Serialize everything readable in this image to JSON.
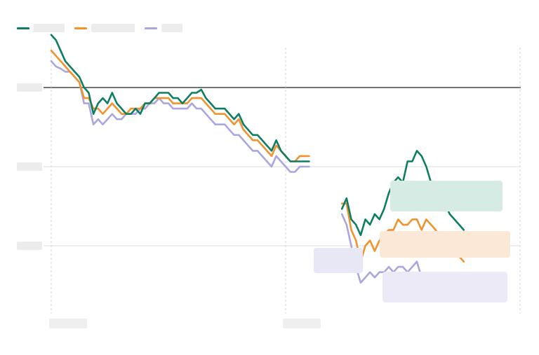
{
  "chart_data": {
    "type": "line",
    "title": "",
    "xlabel": "",
    "ylabel": "",
    "legend_position": "top-left",
    "x_tick_labels": [
      "",
      ""
    ],
    "y_tick_labels": [
      "",
      "",
      ""
    ],
    "ylim": [
      -20,
      5
    ],
    "reference_line": 0,
    "grid": true,
    "colors": [
      "#0e7e63",
      "#f0922e",
      "#a9a6e0"
    ],
    "series": [
      {
        "values": [
          [
            0,
            5.0
          ],
          [
            1,
            4.5
          ],
          [
            2,
            3.5
          ],
          [
            3,
            2.5
          ],
          [
            4,
            2.0
          ],
          [
            5,
            1.5
          ],
          [
            6,
            1.0
          ],
          [
            7,
            0.0
          ],
          [
            8,
            -0.5
          ],
          [
            9,
            -2.5
          ],
          [
            10,
            -1.5
          ],
          [
            11,
            -1.0
          ],
          [
            12,
            -1.5
          ],
          [
            13,
            -0.5
          ],
          [
            14,
            -1.5
          ],
          [
            15,
            -2.0
          ],
          [
            16,
            -2.5
          ],
          [
            17,
            -2.5
          ],
          [
            18,
            -2.0
          ],
          [
            19,
            -2.5
          ],
          [
            20,
            -1.5
          ],
          [
            21,
            -1.5
          ],
          [
            22,
            -1.0
          ],
          [
            23,
            -0.5
          ],
          [
            24,
            -0.5
          ],
          [
            25,
            -0.5
          ],
          [
            26,
            -1.0
          ],
          [
            27,
            -1.0
          ],
          [
            28,
            -1.5
          ],
          [
            29,
            -1.0
          ],
          [
            30,
            -0.5
          ],
          [
            31,
            -0.5
          ],
          [
            32,
            -0.2
          ],
          [
            33,
            -1.0
          ],
          [
            34,
            -1.5
          ],
          [
            35,
            -2.0
          ],
          [
            36,
            -2.0
          ],
          [
            37,
            -2.0
          ],
          [
            38,
            -2.5
          ],
          [
            39,
            -3.0
          ],
          [
            40,
            -2.5
          ],
          [
            41,
            -3.5
          ],
          [
            42,
            -4.0
          ],
          [
            43,
            -4.5
          ],
          [
            44,
            -4.5
          ],
          [
            45,
            -5.0
          ],
          [
            46,
            -5.5
          ],
          [
            47,
            -6.0
          ],
          [
            48,
            -5.0
          ],
          [
            49,
            -6.0
          ],
          [
            50,
            -6.5
          ],
          [
            51,
            -7.0
          ],
          [
            52,
            -7.0
          ],
          [
            53,
            -7.0
          ],
          [
            54,
            -7.0
          ],
          [
            55,
            -7.0
          ],
          [
            62,
            -11.5
          ],
          [
            63,
            -10.5
          ],
          [
            64,
            -12.5
          ],
          [
            65,
            -13.0
          ],
          [
            66,
            -14.0
          ],
          [
            67,
            -12.5
          ],
          [
            68,
            -13.0
          ],
          [
            69,
            -12.0
          ],
          [
            70,
            -12.5
          ],
          [
            71,
            -11.5
          ],
          [
            72,
            -10.0
          ],
          [
            73,
            -9.0
          ],
          [
            74,
            -8.5
          ],
          [
            75,
            -9.0
          ],
          [
            76,
            -7.0
          ],
          [
            77,
            -7.0
          ],
          [
            78,
            -6.0
          ],
          [
            79,
            -6.5
          ],
          [
            80,
            -7.5
          ],
          [
            81,
            -9.0
          ],
          [
            82,
            -9.5
          ],
          [
            83,
            -10.0
          ],
          [
            84,
            -11.0
          ],
          [
            85,
            -12.0
          ],
          [
            86,
            -12.5
          ],
          [
            87,
            -13.0
          ],
          [
            88,
            -13.5
          ]
        ]
      },
      {
        "values": [
          [
            0,
            3.5
          ],
          [
            1,
            3.0
          ],
          [
            2,
            2.5
          ],
          [
            3,
            2.0
          ],
          [
            4,
            1.5
          ],
          [
            5,
            1.0
          ],
          [
            6,
            0.5
          ],
          [
            7,
            -1.0
          ],
          [
            8,
            -1.0
          ],
          [
            9,
            -2.0
          ],
          [
            10,
            -2.0
          ],
          [
            11,
            -2.5
          ],
          [
            12,
            -2.0
          ],
          [
            13,
            -1.5
          ],
          [
            14,
            -2.0
          ],
          [
            15,
            -2.5
          ],
          [
            16,
            -2.5
          ],
          [
            17,
            -2.0
          ],
          [
            18,
            -2.0
          ],
          [
            19,
            -2.0
          ],
          [
            20,
            -1.5
          ],
          [
            21,
            -1.5
          ],
          [
            22,
            -1.0
          ],
          [
            23,
            -1.0
          ],
          [
            24,
            -1.0
          ],
          [
            25,
            -1.0
          ],
          [
            26,
            -1.5
          ],
          [
            27,
            -1.5
          ],
          [
            28,
            -1.5
          ],
          [
            29,
            -1.5
          ],
          [
            30,
            -1.0
          ],
          [
            31,
            -1.0
          ],
          [
            32,
            -1.0
          ],
          [
            33,
            -1.5
          ],
          [
            34,
            -2.0
          ],
          [
            35,
            -2.5
          ],
          [
            36,
            -2.5
          ],
          [
            37,
            -2.5
          ],
          [
            38,
            -3.0
          ],
          [
            39,
            -3.5
          ],
          [
            40,
            -3.0
          ],
          [
            41,
            -4.0
          ],
          [
            42,
            -4.5
          ],
          [
            43,
            -5.0
          ],
          [
            44,
            -5.0
          ],
          [
            45,
            -5.5
          ],
          [
            46,
            -6.0
          ],
          [
            47,
            -6.5
          ],
          [
            48,
            -5.5
          ],
          [
            49,
            -6.0
          ],
          [
            50,
            -6.5
          ],
          [
            51,
            -7.0
          ],
          [
            52,
            -7.0
          ],
          [
            53,
            -6.5
          ],
          [
            54,
            -6.5
          ],
          [
            55,
            -6.5
          ],
          [
            62,
            -11.0
          ],
          [
            63,
            -11.0
          ],
          [
            64,
            -13.5
          ],
          [
            65,
            -14.5
          ],
          [
            66,
            -16.5
          ],
          [
            67,
            -15.0
          ],
          [
            68,
            -14.5
          ],
          [
            69,
            -15.5
          ],
          [
            70,
            -14.5
          ],
          [
            71,
            -14.0
          ],
          [
            72,
            -13.5
          ],
          [
            73,
            -13.5
          ],
          [
            74,
            -12.5
          ],
          [
            75,
            -13.0
          ],
          [
            76,
            -13.0
          ],
          [
            77,
            -12.5
          ],
          [
            78,
            -12.5
          ],
          [
            79,
            -13.5
          ],
          [
            80,
            -12.5
          ],
          [
            81,
            -13.0
          ],
          [
            82,
            -13.5
          ],
          [
            83,
            -14.5
          ],
          [
            84,
            -15.0
          ],
          [
            85,
            -15.5
          ],
          [
            86,
            -16.0
          ],
          [
            87,
            -16.0
          ],
          [
            88,
            -16.5
          ]
        ]
      },
      {
        "values": [
          [
            0,
            2.5
          ],
          [
            1,
            2.0
          ],
          [
            2,
            1.8
          ],
          [
            3,
            1.5
          ],
          [
            4,
            1.5
          ],
          [
            5,
            1.0
          ],
          [
            6,
            0.5
          ],
          [
            7,
            -1.5
          ],
          [
            8,
            -1.5
          ],
          [
            9,
            -3.5
          ],
          [
            10,
            -3.0
          ],
          [
            11,
            -3.5
          ],
          [
            12,
            -3.0
          ],
          [
            13,
            -2.5
          ],
          [
            14,
            -3.0
          ],
          [
            15,
            -3.0
          ],
          [
            16,
            -2.5
          ],
          [
            17,
            -2.5
          ],
          [
            18,
            -2.5
          ],
          [
            19,
            -2.0
          ],
          [
            20,
            -2.0
          ],
          [
            21,
            -1.5
          ],
          [
            22,
            -1.5
          ],
          [
            23,
            -1.0
          ],
          [
            24,
            -1.5
          ],
          [
            25,
            -1.5
          ],
          [
            26,
            -2.0
          ],
          [
            27,
            -2.0
          ],
          [
            28,
            -2.0
          ],
          [
            29,
            -2.0
          ],
          [
            30,
            -1.5
          ],
          [
            31,
            -2.0
          ],
          [
            32,
            -2.0
          ],
          [
            33,
            -2.5
          ],
          [
            34,
            -3.0
          ],
          [
            35,
            -3.5
          ],
          [
            36,
            -3.5
          ],
          [
            37,
            -3.5
          ],
          [
            38,
            -4.0
          ],
          [
            39,
            -4.5
          ],
          [
            40,
            -4.5
          ],
          [
            41,
            -5.0
          ],
          [
            42,
            -5.5
          ],
          [
            43,
            -6.0
          ],
          [
            44,
            -6.0
          ],
          [
            45,
            -6.5
          ],
          [
            46,
            -7.0
          ],
          [
            47,
            -7.5
          ],
          [
            48,
            -6.5
          ],
          [
            49,
            -7.0
          ],
          [
            50,
            -7.5
          ],
          [
            51,
            -8.0
          ],
          [
            52,
            -8.0
          ],
          [
            53,
            -7.5
          ],
          [
            54,
            -7.5
          ],
          [
            55,
            -7.5
          ],
          [
            62,
            -12.0
          ],
          [
            63,
            -13.0
          ],
          [
            64,
            -15.0
          ],
          [
            65,
            -17.0
          ],
          [
            66,
            -18.5
          ],
          [
            67,
            -18.0
          ],
          [
            68,
            -17.5
          ],
          [
            69,
            -18.0
          ],
          [
            70,
            -17.5
          ],
          [
            71,
            -17.5
          ],
          [
            72,
            -17.0
          ],
          [
            73,
            -17.5
          ],
          [
            74,
            -17.0
          ],
          [
            75,
            -17.0
          ],
          [
            76,
            -17.5
          ],
          [
            77,
            -17.0
          ],
          [
            78,
            -16.5
          ],
          [
            79,
            -18.0
          ],
          [
            80,
            -18.5
          ],
          [
            81,
            -18.5
          ],
          [
            82,
            -19.0
          ],
          [
            83,
            -18.5
          ],
          [
            84,
            -18.5
          ],
          [
            85,
            -19.0
          ],
          [
            86,
            -19.5
          ],
          [
            87,
            -19.5
          ],
          [
            88,
            -19.5
          ]
        ]
      }
    ]
  }
}
